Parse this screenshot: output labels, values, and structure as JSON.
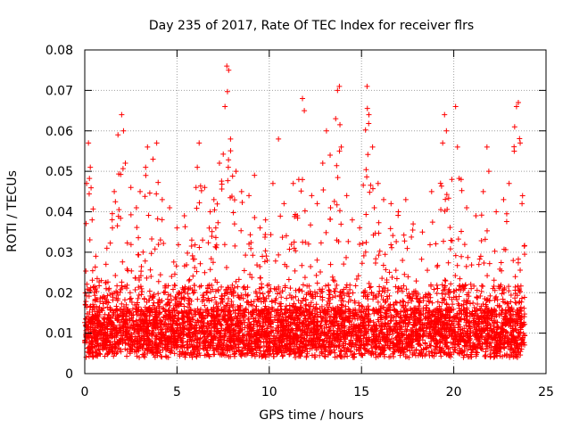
{
  "chart_data": {
    "type": "scatter",
    "title": "Day 235 of 2017, Rate Of TEC Index for receiver flrs",
    "xlabel": "GPS time / hours",
    "ylabel": "ROTI / TECUs",
    "xlim": [
      0,
      25
    ],
    "ylim": [
      0,
      0.08
    ],
    "xticks": [
      0,
      5,
      10,
      15,
      20,
      25
    ],
    "yticks": [
      0,
      0.01,
      0.02,
      0.03,
      0.04,
      0.05,
      0.06,
      0.07,
      0.08
    ],
    "xtick_labels": [
      "0",
      "5",
      "10",
      "15",
      "20",
      "25"
    ],
    "ytick_labels": [
      "0",
      "0.01",
      "0.02",
      "0.03",
      "0.04",
      "0.05",
      "0.06",
      "0.07",
      "0.08"
    ],
    "grid": true,
    "marker": "plus",
    "marker_color": "#ff0000",
    "series": [
      {
        "name": "ROTI",
        "note": "dense cloud of points spanning 0-24 h; baseline ~0.005-0.02 TECU/min with frequent spikes",
        "points": [
          [
            0.1,
            0.047
          ],
          [
            0.2,
            0.057
          ],
          [
            0.3,
            0.051
          ],
          [
            0.4,
            0.038
          ],
          [
            0.6,
            0.029
          ],
          [
            0.9,
            0.023
          ],
          [
            1.2,
            0.031
          ],
          [
            1.5,
            0.036
          ],
          [
            1.6,
            0.045
          ],
          [
            1.8,
            0.059
          ],
          [
            2.0,
            0.064
          ],
          [
            2.1,
            0.06
          ],
          [
            2.2,
            0.052
          ],
          [
            2.5,
            0.046
          ],
          [
            2.8,
            0.041
          ],
          [
            3.0,
            0.045
          ],
          [
            3.3,
            0.051
          ],
          [
            3.4,
            0.056
          ],
          [
            3.7,
            0.053
          ],
          [
            3.9,
            0.057
          ],
          [
            4.2,
            0.043
          ],
          [
            4.6,
            0.041
          ],
          [
            5.0,
            0.036
          ],
          [
            5.4,
            0.039
          ],
          [
            5.8,
            0.033
          ],
          [
            6.1,
            0.051
          ],
          [
            6.2,
            0.057
          ],
          [
            6.5,
            0.046
          ],
          [
            6.8,
            0.04
          ],
          [
            7.0,
            0.043
          ],
          [
            7.3,
            0.052
          ],
          [
            7.6,
            0.066
          ],
          [
            7.7,
            0.076
          ],
          [
            7.8,
            0.075
          ],
          [
            7.9,
            0.058
          ],
          [
            8.2,
            0.05
          ],
          [
            8.5,
            0.045
          ],
          [
            8.9,
            0.044
          ],
          [
            9.2,
            0.049
          ],
          [
            9.5,
            0.036
          ],
          [
            9.8,
            0.038
          ],
          [
            10.2,
            0.047
          ],
          [
            10.5,
            0.058
          ],
          [
            10.8,
            0.042
          ],
          [
            11.3,
            0.047
          ],
          [
            11.6,
            0.048
          ],
          [
            11.8,
            0.068
          ],
          [
            11.9,
            0.065
          ],
          [
            12.3,
            0.044
          ],
          [
            12.6,
            0.042
          ],
          [
            12.9,
            0.052
          ],
          [
            13.1,
            0.06
          ],
          [
            13.3,
            0.054
          ],
          [
            13.6,
            0.063
          ],
          [
            13.7,
            0.07
          ],
          [
            13.8,
            0.071
          ],
          [
            13.9,
            0.056
          ],
          [
            14.2,
            0.044
          ],
          [
            14.5,
            0.038
          ],
          [
            14.9,
            0.036
          ],
          [
            15.3,
            0.071
          ],
          [
            15.4,
            0.064
          ],
          [
            15.6,
            0.056
          ],
          [
            15.9,
            0.047
          ],
          [
            16.2,
            0.043
          ],
          [
            16.6,
            0.042
          ],
          [
            17.0,
            0.04
          ],
          [
            17.4,
            0.043
          ],
          [
            17.8,
            0.037
          ],
          [
            18.3,
            0.035
          ],
          [
            18.8,
            0.045
          ],
          [
            19.4,
            0.057
          ],
          [
            19.5,
            0.064
          ],
          [
            19.6,
            0.06
          ],
          [
            19.9,
            0.048
          ],
          [
            20.1,
            0.066
          ],
          [
            20.2,
            0.056
          ],
          [
            20.4,
            0.048
          ],
          [
            20.7,
            0.041
          ],
          [
            21.2,
            0.039
          ],
          [
            21.6,
            0.045
          ],
          [
            21.8,
            0.056
          ],
          [
            21.9,
            0.05
          ],
          [
            22.3,
            0.04
          ],
          [
            22.7,
            0.043
          ],
          [
            23.0,
            0.047
          ],
          [
            23.3,
            0.061
          ],
          [
            23.4,
            0.066
          ],
          [
            23.5,
            0.067
          ],
          [
            23.6,
            0.057
          ],
          [
            23.7,
            0.042
          ]
        ]
      }
    ]
  }
}
